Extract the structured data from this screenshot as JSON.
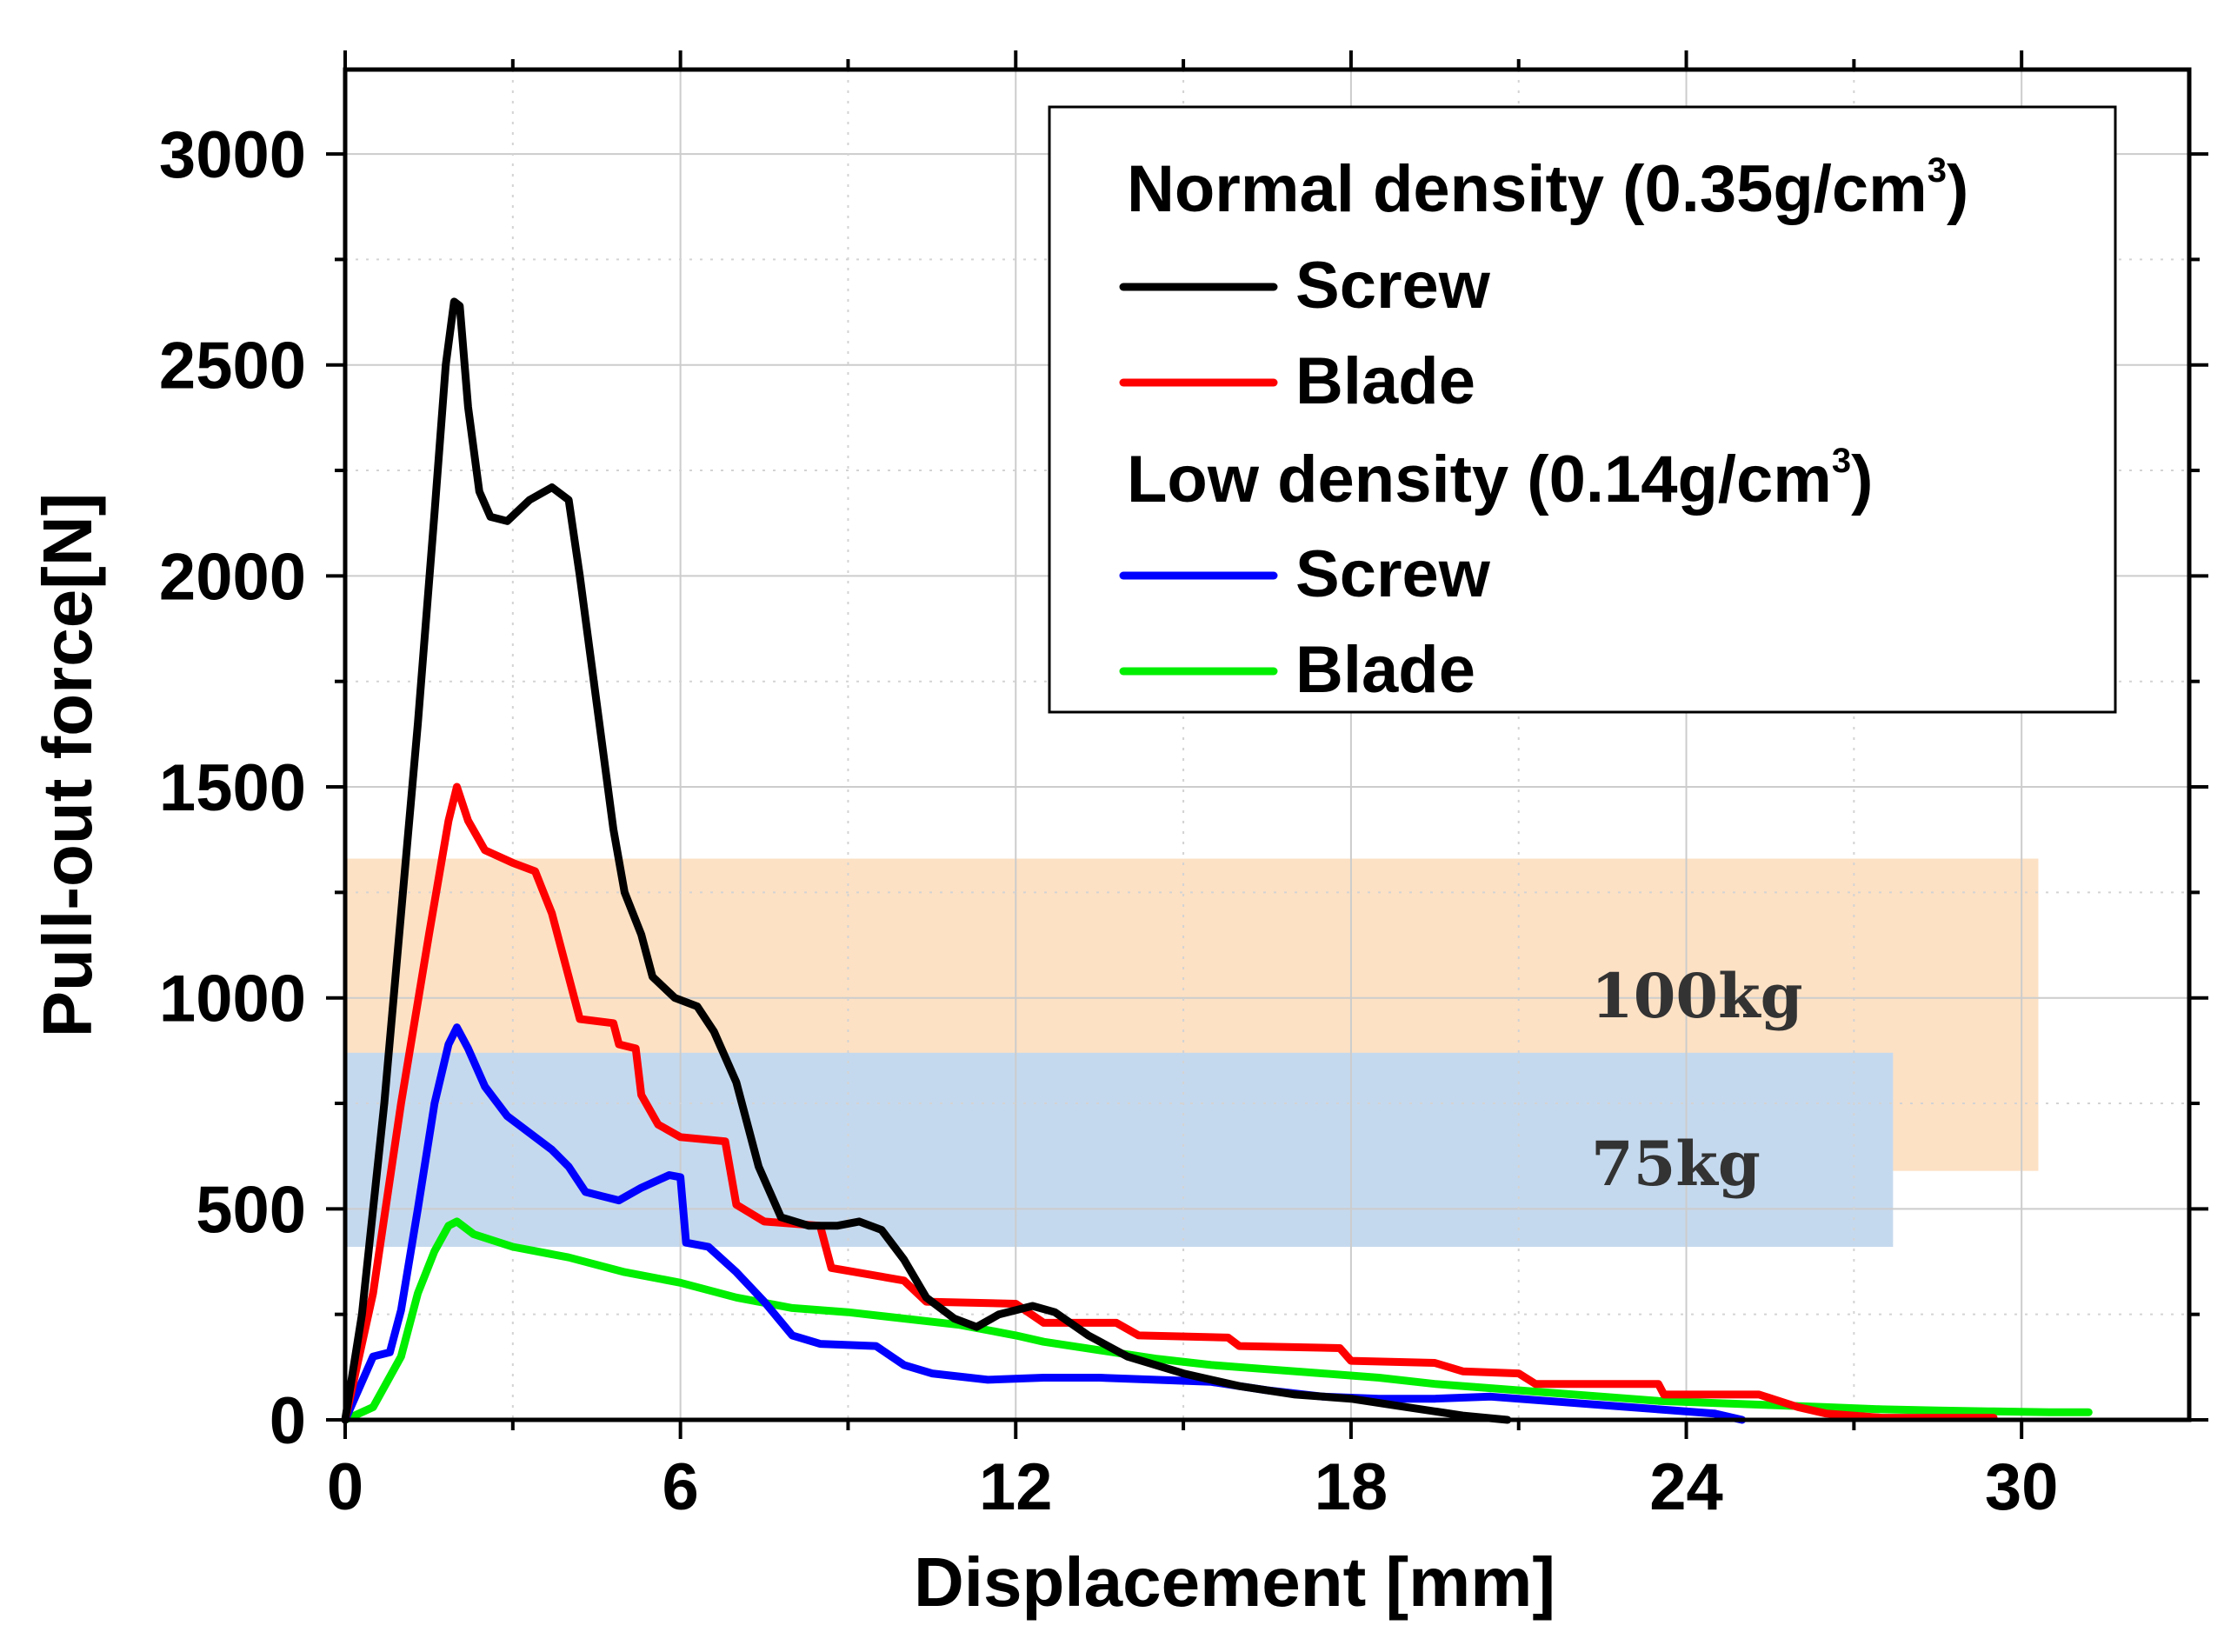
{
  "chart_data": {
    "type": "line",
    "title": "",
    "xlabel": "Displacement [mm]",
    "ylabel": "Pull-out force[N]",
    "xlim": [
      0,
      33
    ],
    "ylim": [
      0,
      3200
    ],
    "x_ticks": [
      0,
      6,
      12,
      18,
      24,
      30
    ],
    "y_ticks": [
      0,
      500,
      1000,
      1500,
      2000,
      2500,
      3000
    ],
    "grid": true,
    "legend_position": "top-right",
    "legend": {
      "group_normal": {
        "prefix": "Normal density (0.35g/cm",
        "sup": "3",
        "suffix": ")"
      },
      "group_low": {
        "prefix": "Low density (0.14g/cm",
        "sup": "3",
        "suffix": ")"
      },
      "normal_screw": "Screw",
      "normal_blade": "Blade",
      "low_screw": "Screw",
      "low_blade": "Blade"
    },
    "bands": [
      {
        "label": "100kg",
        "x_range": [
          0,
          30.3
        ],
        "y_range": [
          590,
          1330
        ],
        "color": "#fde1c4"
      },
      {
        "label": "75kg",
        "x_range": [
          0,
          27.7
        ],
        "y_range": [
          410,
          870
        ],
        "color": "#c5d9ee"
      }
    ],
    "series": [
      {
        "name": "Normal density Screw",
        "color": "#000000",
        "points": [
          [
            0,
            0
          ],
          [
            0.3,
            250
          ],
          [
            0.7,
            750
          ],
          [
            1.0,
            1200
          ],
          [
            1.3,
            1650
          ],
          [
            1.6,
            2150
          ],
          [
            1.8,
            2500
          ],
          [
            1.95,
            2650
          ],
          [
            2.05,
            2640
          ],
          [
            2.2,
            2400
          ],
          [
            2.4,
            2200
          ],
          [
            2.6,
            2140
          ],
          [
            2.9,
            2130
          ],
          [
            3.3,
            2180
          ],
          [
            3.7,
            2210
          ],
          [
            4.0,
            2180
          ],
          [
            4.2,
            2000
          ],
          [
            4.5,
            1700
          ],
          [
            4.8,
            1400
          ],
          [
            5.0,
            1250
          ],
          [
            5.3,
            1150
          ],
          [
            5.5,
            1050
          ],
          [
            5.9,
            1000
          ],
          [
            6.3,
            980
          ],
          [
            6.6,
            920
          ],
          [
            7.0,
            800
          ],
          [
            7.4,
            600
          ],
          [
            7.8,
            480
          ],
          [
            8.3,
            460
          ],
          [
            8.8,
            460
          ],
          [
            9.2,
            470
          ],
          [
            9.6,
            450
          ],
          [
            10.0,
            380
          ],
          [
            10.4,
            290
          ],
          [
            10.9,
            240
          ],
          [
            11.3,
            220
          ],
          [
            11.7,
            250
          ],
          [
            12.3,
            270
          ],
          [
            12.7,
            255
          ],
          [
            13.3,
            200
          ],
          [
            14.0,
            150
          ],
          [
            15.0,
            110
          ],
          [
            16.0,
            80
          ],
          [
            17.0,
            60
          ],
          [
            18.0,
            50
          ],
          [
            19.0,
            30
          ],
          [
            20.0,
            10
          ],
          [
            20.8,
            0
          ]
        ]
      },
      {
        "name": "Normal density Blade",
        "color": "#ff0000",
        "points": [
          [
            0,
            0
          ],
          [
            0.5,
            300
          ],
          [
            1.0,
            750
          ],
          [
            1.5,
            1150
          ],
          [
            1.85,
            1420
          ],
          [
            2.0,
            1500
          ],
          [
            2.2,
            1420
          ],
          [
            2.5,
            1350
          ],
          [
            3.0,
            1320
          ],
          [
            3.4,
            1300
          ],
          [
            3.7,
            1200
          ],
          [
            4.0,
            1050
          ],
          [
            4.2,
            950
          ],
          [
            4.8,
            940
          ],
          [
            4.9,
            890
          ],
          [
            5.2,
            880
          ],
          [
            5.3,
            770
          ],
          [
            5.6,
            700
          ],
          [
            6.0,
            670
          ],
          [
            6.8,
            660
          ],
          [
            7.0,
            510
          ],
          [
            7.5,
            470
          ],
          [
            8.5,
            460
          ],
          [
            8.7,
            360
          ],
          [
            10.0,
            330
          ],
          [
            10.4,
            280
          ],
          [
            12.0,
            275
          ],
          [
            12.5,
            230
          ],
          [
            13.8,
            230
          ],
          [
            14.2,
            200
          ],
          [
            15.8,
            195
          ],
          [
            16.0,
            175
          ],
          [
            17.8,
            170
          ],
          [
            18.0,
            140
          ],
          [
            19.5,
            135
          ],
          [
            20.0,
            115
          ],
          [
            21.0,
            110
          ],
          [
            21.3,
            85
          ],
          [
            23.5,
            85
          ],
          [
            23.6,
            60
          ],
          [
            25.3,
            60
          ],
          [
            26.0,
            30
          ],
          [
            26.5,
            15
          ],
          [
            27.5,
            5
          ],
          [
            29.5,
            5
          ]
        ]
      },
      {
        "name": "Low density Screw",
        "color": "#0000ff",
        "points": [
          [
            0,
            0
          ],
          [
            0.5,
            150
          ],
          [
            0.8,
            160
          ],
          [
            1.0,
            260
          ],
          [
            1.3,
            500
          ],
          [
            1.6,
            750
          ],
          [
            1.85,
            890
          ],
          [
            2.0,
            930
          ],
          [
            2.2,
            880
          ],
          [
            2.5,
            790
          ],
          [
            2.9,
            720
          ],
          [
            3.3,
            680
          ],
          [
            3.7,
            640
          ],
          [
            4.0,
            600
          ],
          [
            4.3,
            540
          ],
          [
            4.6,
            530
          ],
          [
            4.9,
            520
          ],
          [
            5.3,
            550
          ],
          [
            5.8,
            580
          ],
          [
            6.0,
            575
          ],
          [
            6.1,
            420
          ],
          [
            6.5,
            410
          ],
          [
            7.0,
            350
          ],
          [
            7.5,
            280
          ],
          [
            8.0,
            200
          ],
          [
            8.5,
            180
          ],
          [
            9.5,
            175
          ],
          [
            10.0,
            130
          ],
          [
            10.5,
            110
          ],
          [
            11.5,
            95
          ],
          [
            12.5,
            100
          ],
          [
            13.5,
            100
          ],
          [
            14.5,
            95
          ],
          [
            15.5,
            90
          ],
          [
            16.5,
            70
          ],
          [
            17.5,
            55
          ],
          [
            18.5,
            50
          ],
          [
            19.5,
            50
          ],
          [
            20.5,
            55
          ],
          [
            21.5,
            45
          ],
          [
            22.5,
            35
          ],
          [
            23.5,
            25
          ],
          [
            24.5,
            15
          ],
          [
            25.0,
            0
          ]
        ]
      },
      {
        "name": "Low density Blade",
        "color": "#00ee00",
        "points": [
          [
            0,
            0
          ],
          [
            0.5,
            30
          ],
          [
            1.0,
            150
          ],
          [
            1.3,
            300
          ],
          [
            1.6,
            400
          ],
          [
            1.85,
            460
          ],
          [
            2.0,
            470
          ],
          [
            2.3,
            440
          ],
          [
            3.0,
            410
          ],
          [
            4.0,
            385
          ],
          [
            5.0,
            350
          ],
          [
            6.0,
            325
          ],
          [
            7.0,
            290
          ],
          [
            8.0,
            265
          ],
          [
            9.0,
            255
          ],
          [
            10.0,
            240
          ],
          [
            11.0,
            225
          ],
          [
            12.0,
            200
          ],
          [
            12.5,
            185
          ],
          [
            13.5,
            165
          ],
          [
            14.5,
            145
          ],
          [
            15.5,
            130
          ],
          [
            16.5,
            120
          ],
          [
            17.5,
            110
          ],
          [
            18.5,
            100
          ],
          [
            19.5,
            85
          ],
          [
            20.5,
            75
          ],
          [
            21.5,
            65
          ],
          [
            22.5,
            55
          ],
          [
            23.5,
            45
          ],
          [
            24.5,
            40
          ],
          [
            25.5,
            35
          ],
          [
            26.5,
            30
          ],
          [
            27.5,
            25
          ],
          [
            28.5,
            22
          ],
          [
            29.5,
            20
          ],
          [
            30.5,
            18
          ],
          [
            31.2,
            18
          ]
        ]
      }
    ]
  }
}
